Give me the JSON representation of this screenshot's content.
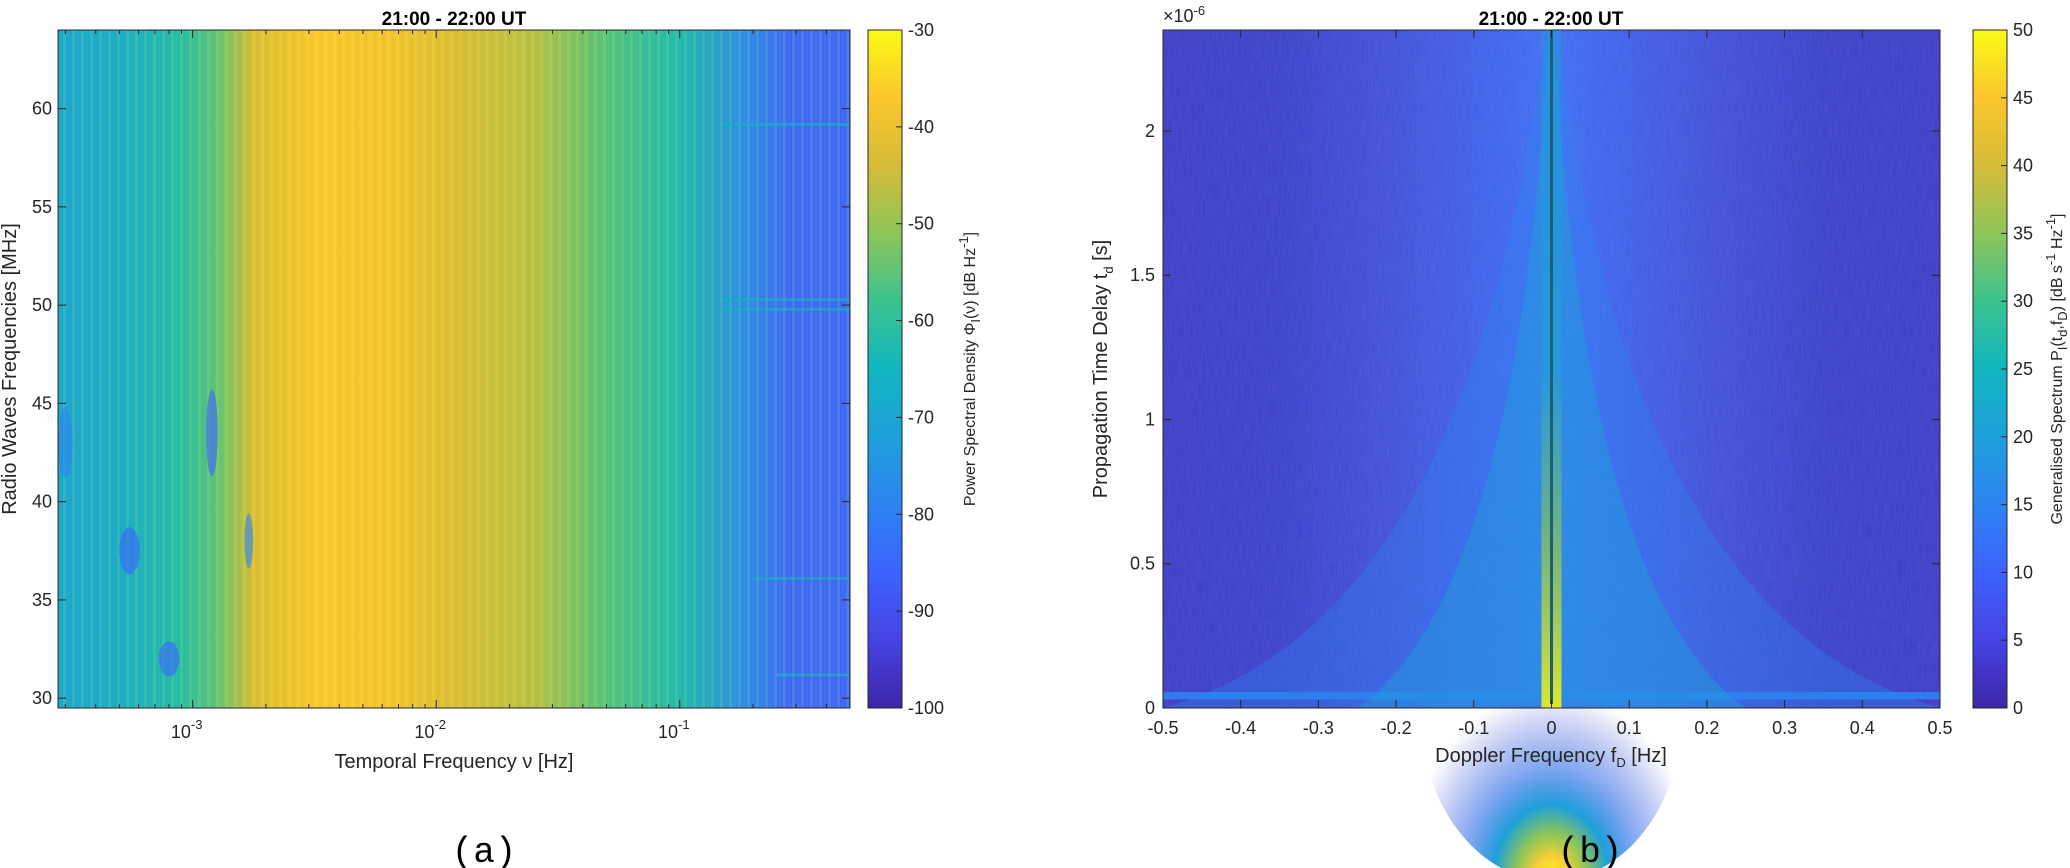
{
  "chart_data": [
    {
      "panel": "(a)",
      "type": "heatmap",
      "title": "21:00 - 22:00  UT",
      "xlabel": "Temporal Frequency ν [Hz]",
      "ylabel": "Radio Waves Frequencies [MHz]",
      "xscale": "log",
      "xlim": [
        0.00028,
        0.5
      ],
      "ylim": [
        29.5,
        64
      ],
      "xticks": [
        0.001,
        0.01,
        0.1
      ],
      "xtick_labels": [
        "10",
        "10",
        "10"
      ],
      "xtick_exponents": [
        "-3",
        "-2",
        "-1"
      ],
      "yticks": [
        30,
        35,
        40,
        45,
        50,
        55,
        60
      ],
      "ytick_labels": [
        "30",
        "35",
        "40",
        "45",
        "50",
        "55",
        "60"
      ],
      "colorbar": {
        "label": "Power Spectral Density Φ",
        "label_sub": "I",
        "label_tail": "(ν)  [dB Hz",
        "label_exp": "-1",
        "label_end": "]",
        "range": [
          -100,
          -30
        ],
        "ticks": [
          -100,
          -90,
          -80,
          -70,
          -60,
          -50,
          -40,
          -30
        ],
        "tick_labels": [
          "-100",
          "-90",
          "-80",
          "-70",
          "-60",
          "-50",
          "-40",
          "-30"
        ],
        "colormap": "parula"
      },
      "profile": {
        "description_values_db_vs_log10_nu": [
          [
            -3.55,
            -70
          ],
          [
            -3.3,
            -68
          ],
          [
            -3.05,
            -62
          ],
          [
            -2.9,
            -55
          ],
          [
            -2.75,
            -43
          ],
          [
            -2.5,
            -37
          ],
          [
            -2.2,
            -38
          ],
          [
            -1.9,
            -43
          ],
          [
            -1.6,
            -47
          ],
          [
            -1.3,
            -56
          ],
          [
            -1.0,
            -63
          ],
          [
            -0.75,
            -76
          ],
          [
            -0.55,
            -85
          ],
          [
            -0.3,
            -88
          ]
        ]
      }
    },
    {
      "panel": "(b)",
      "type": "heatmap",
      "title": "21:00 - 22:00  UT",
      "xlabel": "Doppler Frequency f",
      "xlabel_sub": "D",
      "xlabel_tail": " [Hz]",
      "ylabel": "Propagation Time Delay t",
      "ylabel_sub": "d",
      "ylabel_tail": " [s]",
      "y_multiplier": "×10",
      "y_multiplier_exp": "-6",
      "xlim": [
        -0.5,
        0.5
      ],
      "ylim": [
        0,
        2.35
      ],
      "xticks": [
        -0.5,
        -0.4,
        -0.3,
        -0.2,
        -0.1,
        0,
        0.1,
        0.2,
        0.3,
        0.4,
        0.5
      ],
      "xtick_labels": [
        "-0.5",
        "-0.4",
        "-0.3",
        "-0.2",
        "-0.1",
        "0",
        "0.1",
        "0.2",
        "0.3",
        "0.4",
        "0.5"
      ],
      "yticks": [
        0,
        0.5,
        1,
        1.5,
        2
      ],
      "ytick_labels": [
        "0",
        "0.5",
        "1",
        "1.5",
        "2"
      ],
      "colorbar": {
        "label": "Generalised Spectrum P",
        "label_sub": "I",
        "label_tail": "(t",
        "label_sub2": "d",
        "label_mid": ",f",
        "label_sub3": "D",
        "label_end": ")  [dB s",
        "label_exp1": "-1",
        "label_mid2": " Hz",
        "label_exp2": "-1",
        "label_close": "]",
        "range": [
          0,
          50
        ],
        "ticks": [
          0,
          5,
          10,
          15,
          20,
          25,
          30,
          35,
          40,
          45,
          50
        ],
        "tick_labels": [
          "0",
          "5",
          "10",
          "15",
          "20",
          "25",
          "30",
          "35",
          "40",
          "45",
          "50"
        ],
        "colormap": "parula"
      }
    }
  ],
  "captions": [
    "(a)",
    "(b)"
  ]
}
